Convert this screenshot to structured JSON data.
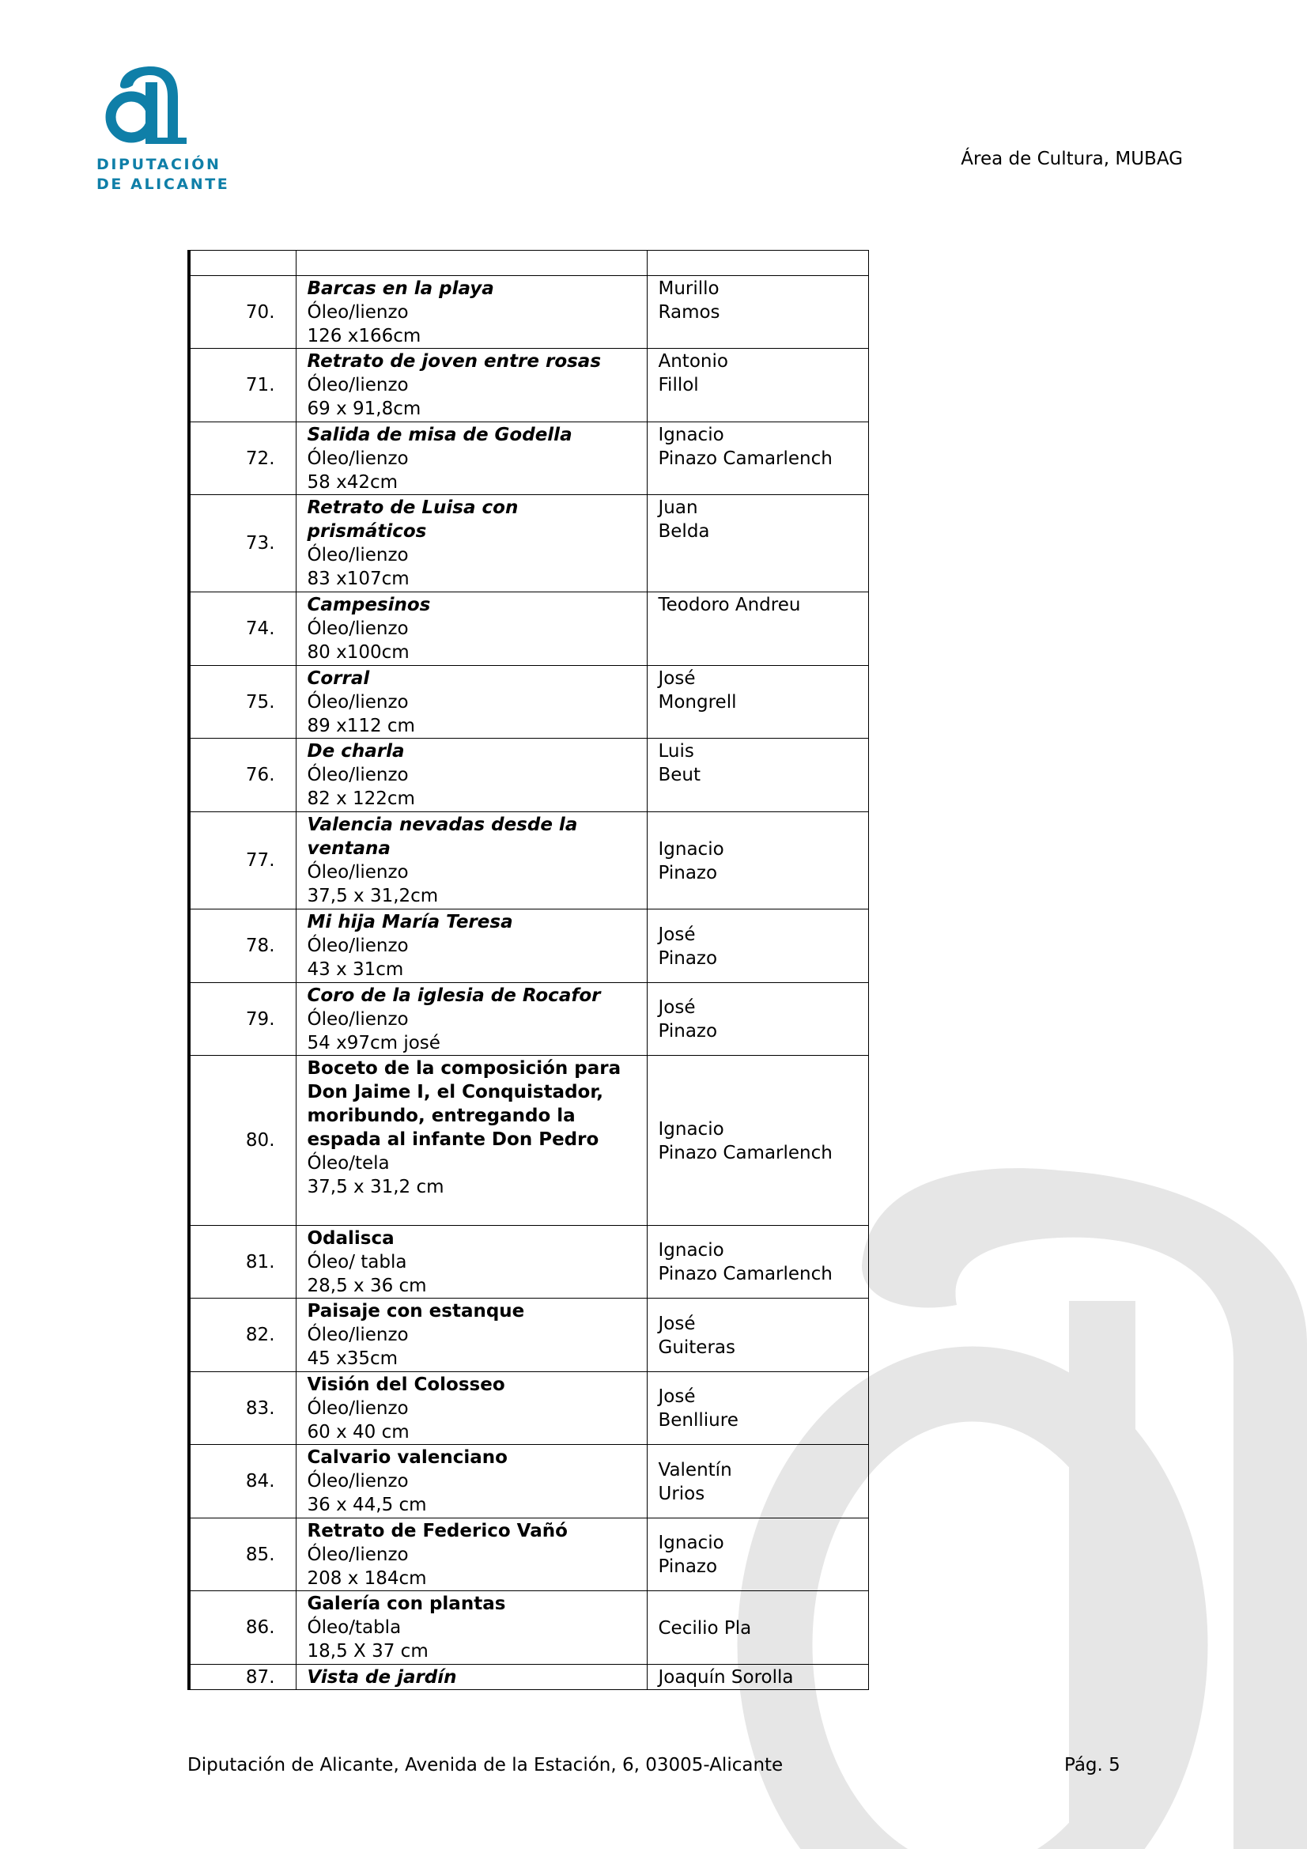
{
  "header": {
    "logo_text_line1": "DIPUTACIÓN",
    "logo_text_line2": "DE ALICANTE",
    "area": "Área de Cultura, MUBAG",
    "brand_color": "#0f7fa8",
    "watermark_color": "#e6e6e6"
  },
  "table": {
    "rows": [
      {
        "num": "70.",
        "title": "Barcas en la playa",
        "italic": true,
        "medium": "Óleo/lienzo",
        "size": "126 x166cm",
        "artist": [
          "Murillo",
          "Ramos"
        ]
      },
      {
        "num": "71.",
        "title": "Retrato de joven entre rosas",
        "italic": true,
        "medium": "Óleo/lienzo",
        "size": "69 x 91,8cm",
        "artist": [
          "Antonio",
          "Fillol"
        ]
      },
      {
        "num": "72.",
        "title": "Salida de misa de Godella",
        "italic": true,
        "medium": "Óleo/lienzo",
        "size": "58 x42cm",
        "artist": [
          "Ignacio",
          "Pinazo Camarlench"
        ]
      },
      {
        "num": "73.",
        "title": "Retrato de Luisa con prismáticos",
        "italic": true,
        "medium": "Óleo/lienzo",
        "size": "83 x107cm",
        "artist": [
          "Juan",
          "Belda"
        ]
      },
      {
        "num": "74.",
        "title": "Campesinos",
        "italic": true,
        "medium": "Óleo/lienzo",
        "size": "80 x100cm",
        "artist": [
          "Teodoro Andreu"
        ]
      },
      {
        "num": "75.",
        "title": "Corral",
        "italic": true,
        "medium": "Óleo/lienzo",
        "size": "89 x112 cm",
        "artist": [
          "José",
          "Mongrell"
        ]
      },
      {
        "num": "76.",
        "title": "De charla",
        "italic": true,
        "medium": "Óleo/lienzo",
        "size": "82 x 122cm",
        "artist": [
          "Luis",
          "Beut"
        ]
      },
      {
        "num": "77.",
        "title": "Valencia nevadas desde la ventana",
        "italic": true,
        "medium": "Óleo/lienzo",
        "size": "37,5 x 31,2cm",
        "artist": [
          "Ignacio",
          "Pinazo"
        ]
      },
      {
        "num": "78.",
        "title": "Mi hija María Teresa",
        "italic": true,
        "medium": "Óleo/lienzo",
        "size": "43 x 31cm",
        "artist": [
          "José",
          "Pinazo"
        ]
      },
      {
        "num": "79.",
        "title": "Coro de la iglesia de Rocafor",
        "italic": true,
        "medium": "Óleo/lienzo",
        "size": "54 x97cm josé",
        "artist": [
          "José",
          "Pinazo"
        ]
      },
      {
        "num": "80.",
        "title": "Boceto de la composición para Don Jaime I, el Conquistador, moribundo, entregando la espada al infante Don Pedro",
        "italic": false,
        "medium": "Óleo/tela",
        "size": "37,5 x 31,2 cm",
        "artist": [
          "Ignacio",
          "Pinazo Camarlench"
        ]
      },
      {
        "num": "81.",
        "title": "Odalisca",
        "italic": false,
        "medium": "Óleo/ tabla",
        "size": "28,5 x 36 cm",
        "artist": [
          "Ignacio",
          "Pinazo Camarlench"
        ]
      },
      {
        "num": "82.",
        "title": "Paisaje con estanque",
        "italic": false,
        "medium": "Óleo/lienzo",
        "size": "45 x35cm",
        "artist": [
          "José",
          "Guiteras"
        ]
      },
      {
        "num": "83.",
        "title": "Visión del Colosseo",
        "italic": false,
        "medium": "Óleo/lienzo",
        "size": "60 x 40 cm",
        "artist": [
          "José",
          "Benlliure"
        ]
      },
      {
        "num": "84.",
        "title": "Calvario valenciano",
        "italic": false,
        "medium": "Óleo/lienzo",
        "size": "36 x 44,5 cm",
        "artist": [
          "Valentín",
          "Urios"
        ]
      },
      {
        "num": "85.",
        "title": "Retrato de Federico Vañó",
        "italic": false,
        "medium": "Óleo/lienzo",
        "size": "208 x 184cm",
        "artist": [
          "Ignacio",
          "Pinazo"
        ]
      },
      {
        "num": "86.",
        "title": "Galería con plantas",
        "italic": false,
        "medium": "Óleo/tabla",
        "size": "18,5 X 37 cm",
        "artist": [
          "Cecilio Pla"
        ]
      },
      {
        "num": "87.",
        "title": "Vista de jardín",
        "italic": true,
        "medium": "",
        "size": "",
        "artist": [
          "Joaquín Sorolla"
        ]
      }
    ]
  },
  "footer": {
    "address": "Diputación de Alicante, Avenida de la Estación, 6, 03005-Alicante",
    "page": "Pág. 5"
  }
}
